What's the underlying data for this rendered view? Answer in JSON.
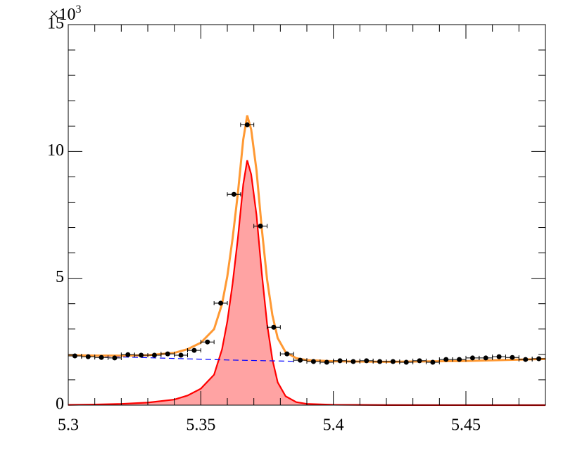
{
  "chart_data": {
    "type": "scatter",
    "xlim": [
      5.3,
      5.48
    ],
    "xticks": [
      5.3,
      5.35,
      5.4,
      5.45
    ],
    "xticks_minor": [
      5.31,
      5.32,
      5.33,
      5.34,
      5.36,
      5.37,
      5.38,
      5.39,
      5.41,
      5.42,
      5.43,
      5.44,
      5.46,
      5.47
    ],
    "ylim": [
      0,
      15000
    ],
    "yticks": [
      {
        "value": 0,
        "label": "0"
      },
      {
        "value": 5000,
        "label": "5"
      },
      {
        "value": 10000,
        "label": "10"
      },
      {
        "value": 15000,
        "label": "15"
      }
    ],
    "yticks_minor": [
      1000,
      2000,
      3000,
      4000,
      6000,
      7000,
      8000,
      9000,
      11000,
      12000,
      13000,
      14000
    ],
    "y_multiplier": {
      "base": "×10",
      "exponent": "3"
    },
    "series": [
      {
        "type": "area",
        "color": "#ff0000",
        "fill": "#ffa3a3",
        "x": [
          5.3,
          5.31,
          5.32,
          5.33,
          5.34,
          5.345,
          5.35,
          5.355,
          5.358,
          5.36,
          5.362,
          5.364,
          5.366,
          5.3675,
          5.369,
          5.371,
          5.373,
          5.375,
          5.377,
          5.379,
          5.382,
          5.386,
          5.39,
          5.4,
          5.42,
          5.45,
          5.48
        ],
        "values": [
          10,
          25,
          50,
          100,
          220,
          380,
          650,
          1200,
          2200,
          3300,
          4800,
          6600,
          8700,
          9650,
          9100,
          7500,
          5200,
          3200,
          1800,
          900,
          350,
          120,
          50,
          15,
          4,
          1,
          0
        ]
      },
      {
        "type": "line",
        "color": "#0000ff",
        "dash": true,
        "x": [
          5.3,
          5.32,
          5.34,
          5.36,
          5.38,
          5.385
        ],
        "values": [
          1960,
          1900,
          1840,
          1780,
          1740,
          1728
        ]
      },
      {
        "type": "line",
        "color": "#ff9933",
        "x": [
          5.3,
          5.31,
          5.32,
          5.33,
          5.34,
          5.345,
          5.35,
          5.355,
          5.358,
          5.36,
          5.362,
          5.364,
          5.366,
          5.3675,
          5.369,
          5.371,
          5.373,
          5.375,
          5.377,
          5.379,
          5.382,
          5.386,
          5.39,
          5.4,
          5.42,
          5.45,
          5.48
        ],
        "values": [
          1970,
          1955,
          1950,
          1970,
          2060,
          2205,
          2460,
          2995,
          3986,
          5080,
          6576,
          8372,
          10468,
          11415,
          10862,
          9258,
          6954,
          4950,
          3546,
          2642,
          2086,
          1850,
          1775,
          1730,
          1709,
          1741,
          1820
        ]
      },
      {
        "type": "points",
        "color": "#000000",
        "xerr": 0.0025,
        "x": [
          5.3025,
          5.3075,
          5.3125,
          5.3175,
          5.3225,
          5.3275,
          5.3325,
          5.3375,
          5.3425,
          5.3475,
          5.3525,
          5.3575,
          5.3625,
          5.3675,
          5.3725,
          5.3775,
          5.3825,
          5.3875,
          5.3925,
          5.3975,
          5.4025,
          5.4075,
          5.4125,
          5.4175,
          5.4225,
          5.4275,
          5.4325,
          5.4375,
          5.4425,
          5.4475,
          5.4525,
          5.4575,
          5.4625,
          5.4675,
          5.4725,
          5.4775
        ],
        "values": [
          1940,
          1910,
          1880,
          1860,
          1990,
          1970,
          1970,
          2020,
          1970,
          2160,
          2490,
          4020,
          8310,
          11050,
          7060,
          3070,
          2020,
          1770,
          1720,
          1690,
          1750,
          1720,
          1750,
          1720,
          1720,
          1690,
          1750,
          1690,
          1800,
          1800,
          1860,
          1860,
          1910,
          1880,
          1800,
          1830
        ]
      }
    ]
  }
}
